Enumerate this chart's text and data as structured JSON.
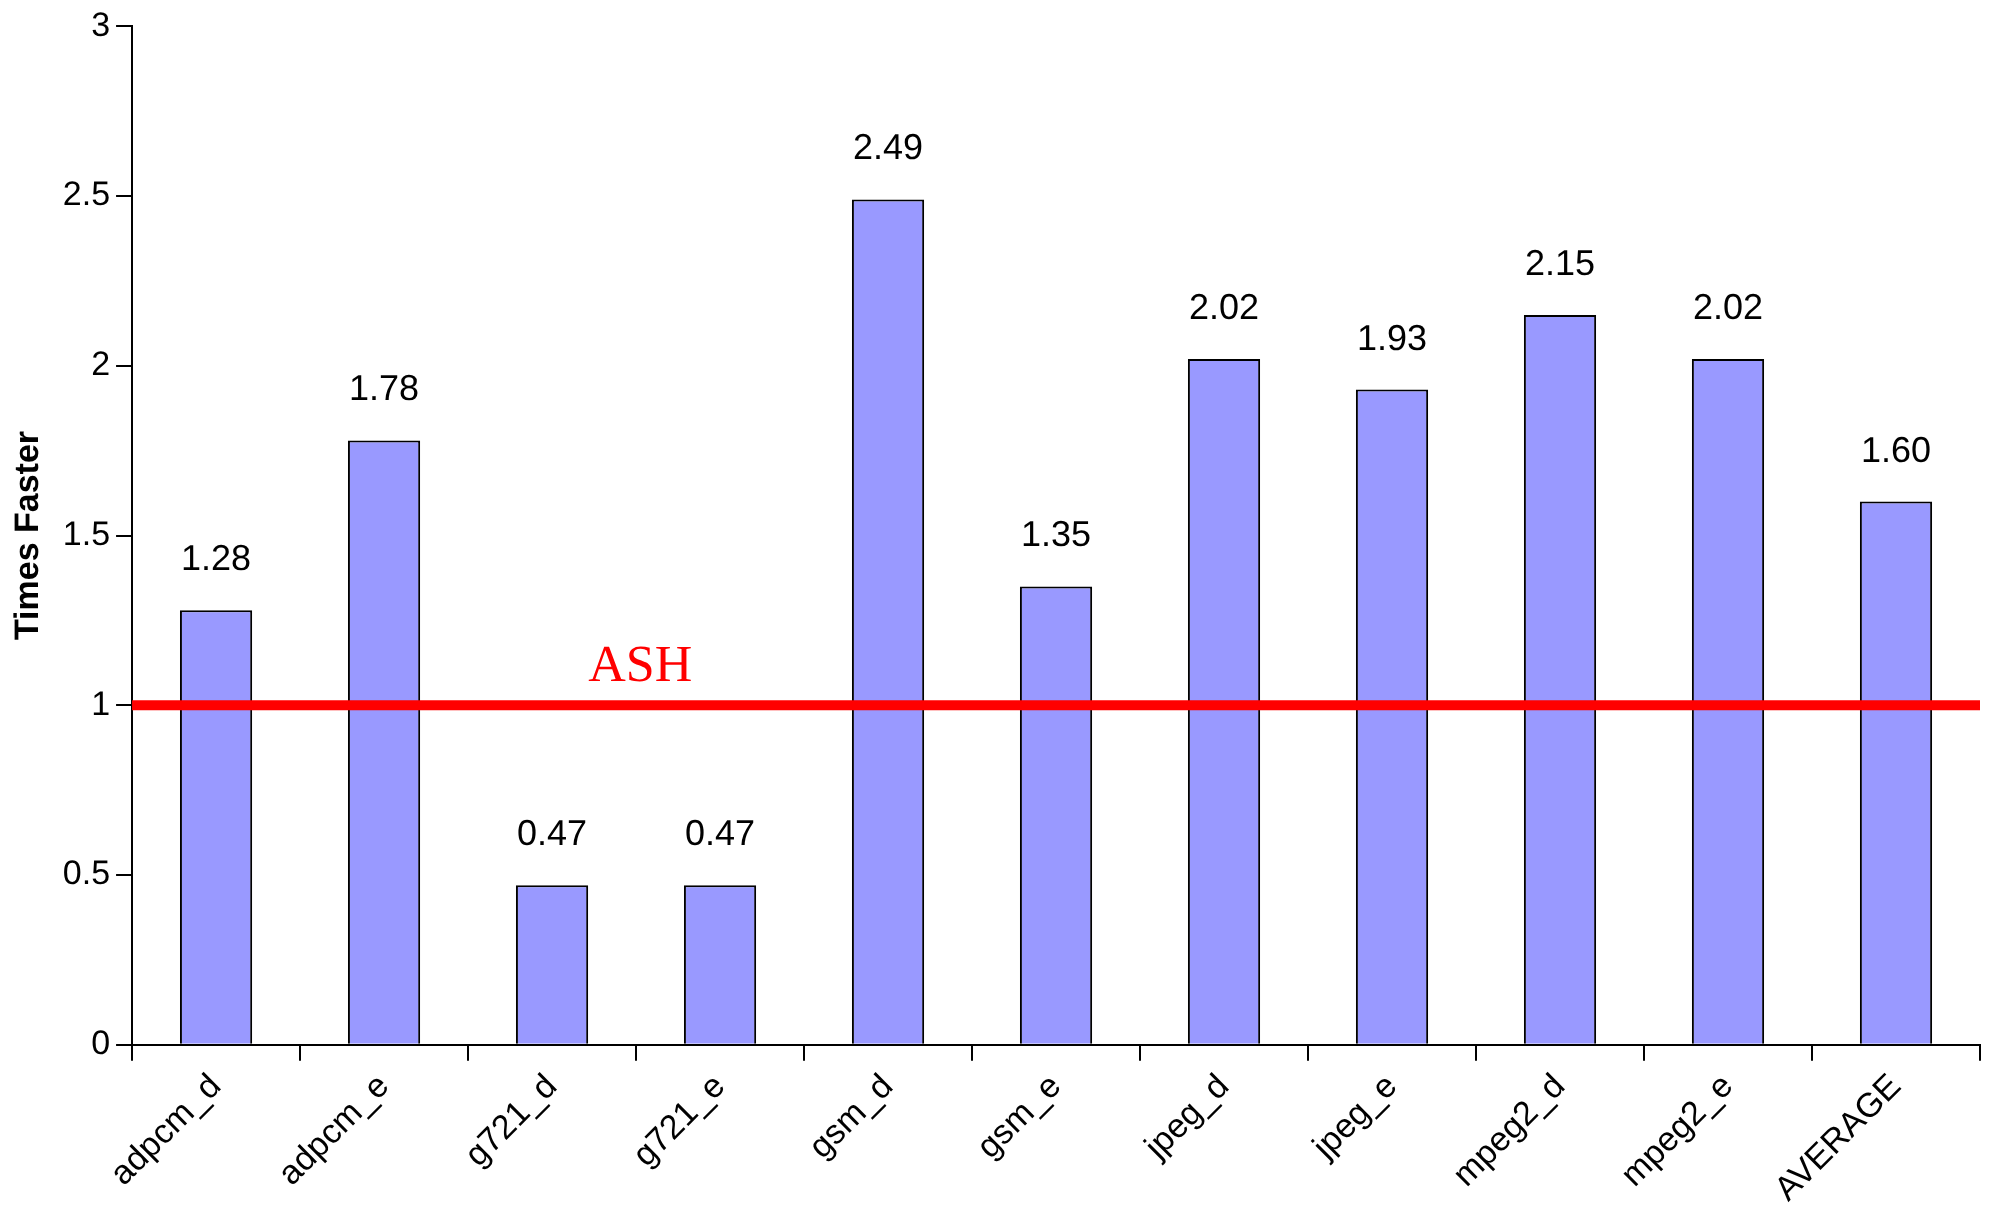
{
  "chart_data": {
    "type": "bar",
    "ylabel": "Times Faster",
    "categories": [
      "adpcm_d",
      "adpcm_e",
      "g721_d",
      "g721_e",
      "gsm_d",
      "gsm_e",
      "jpeg_d",
      "jpeg_e",
      "mpeg2_d",
      "mpeg2_e",
      "AVERAGE"
    ],
    "values": [
      1.28,
      1.78,
      0.47,
      0.47,
      2.49,
      1.35,
      2.02,
      1.93,
      2.15,
      2.02,
      1.6
    ],
    "value_labels": [
      "1.28",
      "1.78",
      "0.47",
      "0.47",
      "2.49",
      "1.35",
      "2.02",
      "1.93",
      "2.15",
      "2.02",
      "1.60"
    ],
    "color": "#9999ff",
    "ylim": [
      0,
      3
    ],
    "yticks": [
      0,
      0.5,
      1,
      1.5,
      2,
      2.5,
      3
    ],
    "grid": false,
    "legend": false,
    "ref_lines": [
      {
        "axis": "y",
        "value": 1,
        "label": "ASH",
        "color": "#ff0000"
      }
    ]
  }
}
